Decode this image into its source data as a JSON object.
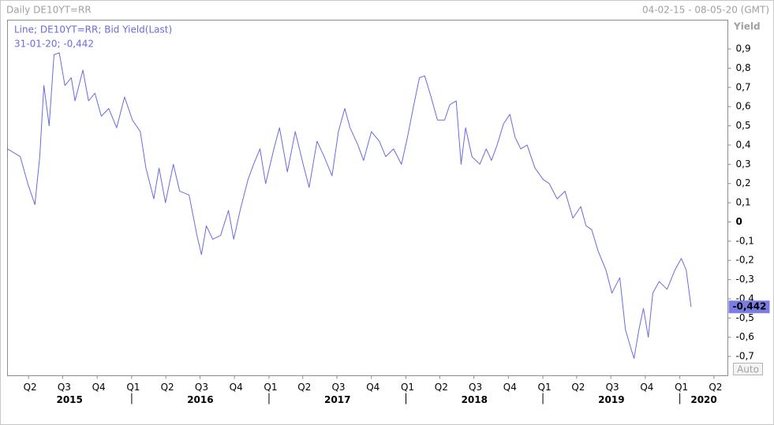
{
  "chart_data": {
    "type": "line",
    "title": "Daily DE10YT=RR",
    "date_range": "04-02-15 - 08-05-20 (GMT)",
    "y_axis_label": "Yield",
    "legend_title": "Line; DE10YT=RR; Bid Yield(Last)",
    "legend_detail": "31-01-20; -0,442",
    "end_label": "-0,442",
    "button": "Auto",
    "xlim": [
      "2015-02-04",
      "2020-05-08"
    ],
    "ylim": [
      -0.8,
      1.05
    ],
    "yticks": [
      {
        "value": 0.9,
        "label": "0,9"
      },
      {
        "value": 0.8,
        "label": "0,8"
      },
      {
        "value": 0.7,
        "label": "0,7"
      },
      {
        "value": 0.6,
        "label": "0,6"
      },
      {
        "value": 0.5,
        "label": "0,5"
      },
      {
        "value": 0.4,
        "label": "0,4"
      },
      {
        "value": 0.3,
        "label": "0,3"
      },
      {
        "value": 0.2,
        "label": "0,2"
      },
      {
        "value": 0.1,
        "label": "0,1"
      },
      0,
      {
        "value": -0.1,
        "label": "-0,1"
      },
      {
        "value": -0.2,
        "label": "-0,2"
      },
      {
        "value": -0.3,
        "label": "-0,3"
      },
      {
        "value": -0.4,
        "label": "-0,4"
      },
      {
        "value": -0.5,
        "label": "-0,5"
      },
      {
        "value": -0.6,
        "label": "-0,6"
      },
      {
        "value": -0.7,
        "label": "-0,7"
      }
    ],
    "xticks": [
      {
        "value": "2015-04-01",
        "label": "Q2"
      },
      {
        "value": "2015-07-01",
        "label": "Q3"
      },
      {
        "value": "2015-10-01",
        "label": "Q4"
      },
      {
        "value": "2016-01-01",
        "label": "Q1"
      },
      {
        "value": "2016-04-01",
        "label": "Q2"
      },
      {
        "value": "2016-07-01",
        "label": "Q3"
      },
      {
        "value": "2016-10-01",
        "label": "Q4"
      },
      {
        "value": "2017-01-01",
        "label": "Q1"
      },
      {
        "value": "2017-04-01",
        "label": "Q2"
      },
      {
        "value": "2017-07-01",
        "label": "Q3"
      },
      {
        "value": "2017-10-01",
        "label": "Q4"
      },
      {
        "value": "2018-01-01",
        "label": "Q1"
      },
      {
        "value": "2018-04-01",
        "label": "Q2"
      },
      {
        "value": "2018-07-01",
        "label": "Q3"
      },
      {
        "value": "2018-10-01",
        "label": "Q4"
      },
      {
        "value": "2019-01-01",
        "label": "Q1"
      },
      {
        "value": "2019-04-01",
        "label": "Q2"
      },
      {
        "value": "2019-07-01",
        "label": "Q3"
      },
      {
        "value": "2019-10-01",
        "label": "Q4"
      },
      {
        "value": "2020-01-01",
        "label": "Q1"
      },
      {
        "value": "2020-04-01",
        "label": "Q2"
      }
    ],
    "year_labels": [
      2015,
      2016,
      2017,
      2018,
      2019,
      2020
    ],
    "series": [
      {
        "name": "DE10YT=RR",
        "color": "#6a6ae0",
        "x": [
          "2015-02-04",
          "2015-03-10",
          "2015-03-30",
          "2015-04-18",
          "2015-05-01",
          "2015-05-12",
          "2015-05-26",
          "2015-06-08",
          "2015-06-22",
          "2015-07-07",
          "2015-07-24",
          "2015-08-03",
          "2015-08-24",
          "2015-09-08",
          "2015-09-25",
          "2015-10-12",
          "2015-11-01",
          "2015-11-22",
          "2015-12-13",
          "2016-01-03",
          "2016-01-24",
          "2016-02-08",
          "2016-02-29",
          "2016-03-14",
          "2016-03-31",
          "2016-04-21",
          "2016-05-08",
          "2016-06-02",
          "2016-06-23",
          "2016-07-05",
          "2016-07-18",
          "2016-08-04",
          "2016-08-25",
          "2016-09-15",
          "2016-09-29",
          "2016-10-16",
          "2016-11-06",
          "2016-11-21",
          "2016-12-08",
          "2016-12-23",
          "2017-01-14",
          "2017-01-29",
          "2017-02-19",
          "2017-03-12",
          "2017-04-02",
          "2017-04-18",
          "2017-05-09",
          "2017-05-28",
          "2017-06-18",
          "2017-07-05",
          "2017-07-22",
          "2017-08-05",
          "2017-08-26",
          "2017-09-10",
          "2017-10-01",
          "2017-10-22",
          "2017-11-08",
          "2017-11-29",
          "2017-12-20",
          "2018-01-05",
          "2018-01-20",
          "2018-02-06",
          "2018-02-20",
          "2018-03-09",
          "2018-03-26",
          "2018-04-14",
          "2018-04-28",
          "2018-05-15",
          "2018-05-28",
          "2018-06-09",
          "2018-06-26",
          "2018-07-17",
          "2018-08-03",
          "2018-08-17",
          "2018-09-01",
          "2018-09-18",
          "2018-10-05",
          "2018-10-19",
          "2018-11-03",
          "2018-11-20",
          "2018-12-11",
          "2019-01-02",
          "2019-01-18",
          "2019-02-08",
          "2019-03-01",
          "2019-03-22",
          "2019-04-12",
          "2019-04-26",
          "2019-05-11",
          "2019-05-28",
          "2019-06-18",
          "2019-07-04",
          "2019-07-25",
          "2019-08-09",
          "2019-08-24",
          "2019-09-01",
          "2019-09-14",
          "2019-09-26",
          "2019-10-09",
          "2019-10-21",
          "2019-11-07",
          "2019-11-28",
          "2019-12-19",
          "2020-01-05",
          "2020-01-18",
          "2020-01-31"
        ],
        "values": [
          0.38,
          0.34,
          0.2,
          0.09,
          0.34,
          0.71,
          0.5,
          0.87,
          0.88,
          0.71,
          0.75,
          0.63,
          0.79,
          0.63,
          0.67,
          0.55,
          0.59,
          0.49,
          0.65,
          0.53,
          0.47,
          0.28,
          0.12,
          0.28,
          0.1,
          0.3,
          0.16,
          0.14,
          -0.07,
          -0.17,
          -0.02,
          -0.09,
          -0.07,
          0.06,
          -0.09,
          0.06,
          0.22,
          0.3,
          0.38,
          0.2,
          0.38,
          0.49,
          0.26,
          0.47,
          0.3,
          0.18,
          0.42,
          0.34,
          0.24,
          0.47,
          0.59,
          0.49,
          0.4,
          0.32,
          0.47,
          0.42,
          0.34,
          0.38,
          0.3,
          0.44,
          0.59,
          0.75,
          0.76,
          0.65,
          0.53,
          0.53,
          0.61,
          0.63,
          0.3,
          0.49,
          0.34,
          0.3,
          0.38,
          0.32,
          0.4,
          0.51,
          0.56,
          0.44,
          0.38,
          0.4,
          0.28,
          0.22,
          0.2,
          0.12,
          0.16,
          0.02,
          0.08,
          -0.02,
          -0.04,
          -0.15,
          -0.25,
          -0.37,
          -0.29,
          -0.56,
          -0.66,
          -0.71,
          -0.56,
          -0.45,
          -0.6,
          -0.37,
          -0.31,
          -0.35,
          -0.25,
          -0.19,
          -0.25,
          -0.442
        ]
      }
    ]
  }
}
